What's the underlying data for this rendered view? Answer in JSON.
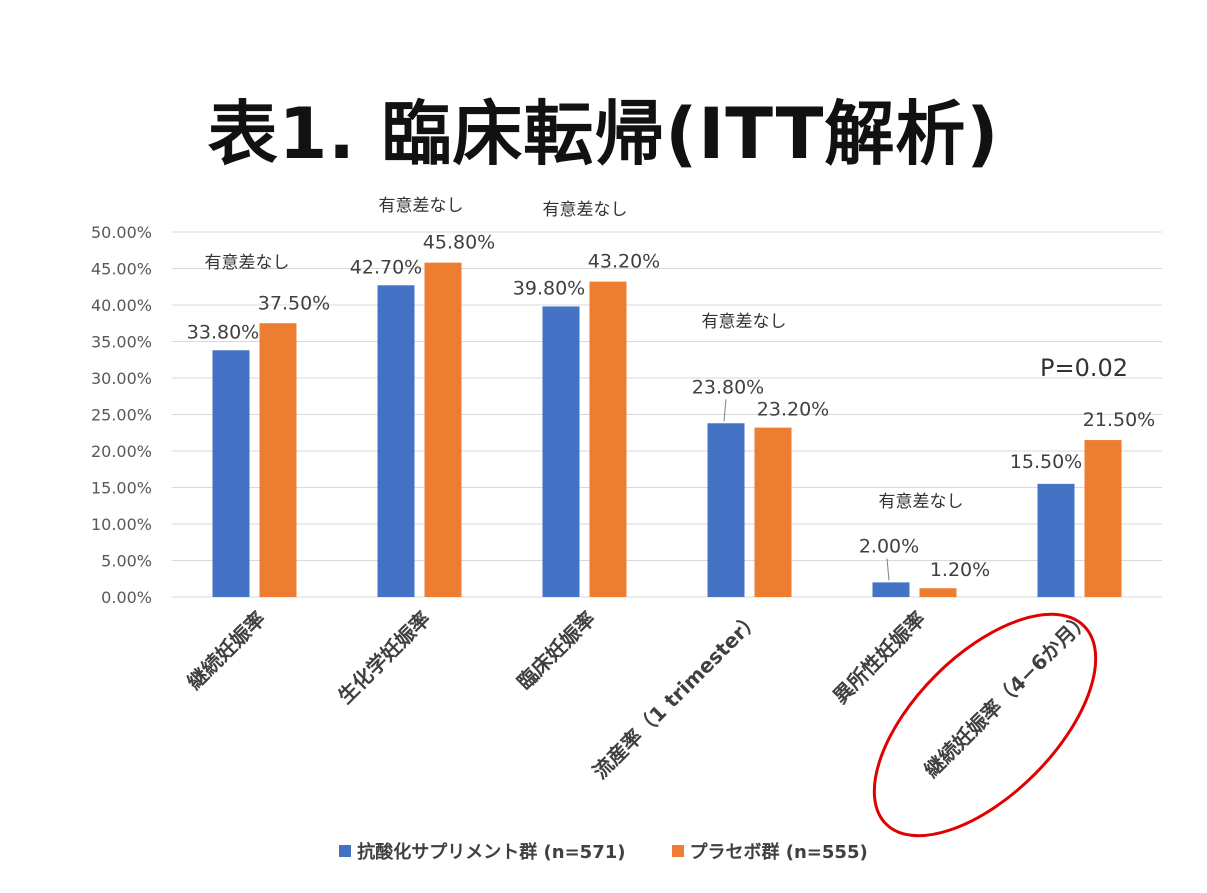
{
  "title": "表1. 臨床転帰(ITT解析)",
  "colors": {
    "series_1": "#4472C4",
    "series_2": "#ED7D31",
    "gridline": "#D9D9D9",
    "axis_text": "#595959",
    "highlight": "#E00000"
  },
  "chart_data": {
    "type": "bar",
    "categories": [
      "継続妊娠率",
      "生化学妊娠率",
      "臨床妊娠率",
      "流産率（1 trimester）",
      "異所性妊娠率",
      "継続妊娠率（4−6か月）"
    ],
    "series": [
      {
        "name": "抗酸化サプリメント群 (n=571)",
        "values": [
          33.8,
          42.7,
          39.8,
          23.8,
          2.0,
          15.5
        ],
        "labels": [
          "33.80%",
          "42.70%",
          "39.80%",
          "23.80%",
          "2.00%",
          "15.50%"
        ]
      },
      {
        "name": "プラセボ群 (n=555)",
        "values": [
          37.5,
          45.8,
          43.2,
          23.2,
          1.2,
          21.5
        ],
        "labels": [
          "37.50%",
          "45.80%",
          "43.20%",
          "23.20%",
          "1.20%",
          "21.50%"
        ]
      }
    ],
    "ylim": [
      0,
      50
    ],
    "ytick_values": [
      0,
      5,
      10,
      15,
      20,
      25,
      30,
      35,
      40,
      45,
      50
    ],
    "ytick_labels": [
      "0.00%",
      "5.00%",
      "10.00%",
      "15.00%",
      "20.00%",
      "25.00%",
      "30.00%",
      "35.00%",
      "40.00%",
      "45.00%",
      "50.00%"
    ],
    "grid": true,
    "legend_position": "bottom",
    "annotations": [
      "有意差なし",
      "有意差なし",
      "有意差なし",
      "有意差なし",
      "有意差なし",
      "P=0.02"
    ],
    "highlighted_category": "継続妊娠率（4−6か月）"
  }
}
